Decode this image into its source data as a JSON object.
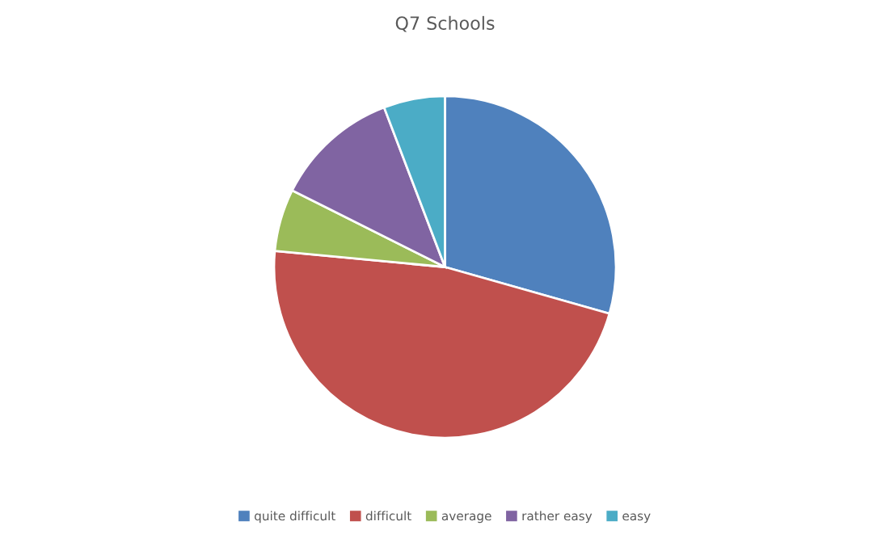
{
  "chart_data": {
    "type": "pie",
    "title": "Q7 Schools",
    "categories": [
      "quite difficult",
      "difficult",
      "average",
      "rather easy",
      "easy"
    ],
    "values": [
      29.4,
      47.1,
      5.9,
      11.8,
      5.8
    ],
    "colors": [
      "#4f81bd",
      "#c0504d",
      "#9bbb59",
      "#8064a2",
      "#4bacc6"
    ],
    "legend": "bottom"
  }
}
